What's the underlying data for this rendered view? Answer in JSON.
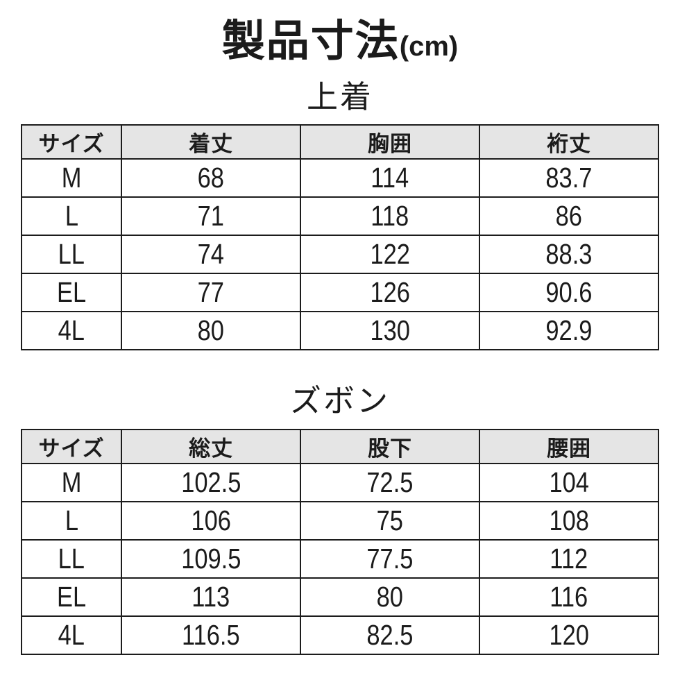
{
  "page": {
    "title_main": "製品寸法",
    "title_unit": "(cm)"
  },
  "colors": {
    "header_bg": "#e5e5e5",
    "border": "#1c1c1c",
    "text": "#1b1b1b",
    "background": "#ffffff"
  },
  "tables": [
    {
      "id": "jacket",
      "heading": "上着",
      "columns": [
        "サイズ",
        "着丈",
        "胸囲",
        "裄丈"
      ],
      "rows": [
        [
          "M",
          "68",
          "114",
          "83.7"
        ],
        [
          "L",
          "71",
          "118",
          "86"
        ],
        [
          "LL",
          "74",
          "122",
          "88.3"
        ],
        [
          "EL",
          "77",
          "126",
          "90.6"
        ],
        [
          "4L",
          "80",
          "130",
          "92.9"
        ]
      ]
    },
    {
      "id": "pants",
      "heading": "ズボン",
      "columns": [
        "サイズ",
        "総丈",
        "股下",
        "腰囲"
      ],
      "rows": [
        [
          "M",
          "102.5",
          "72.5",
          "104"
        ],
        [
          "L",
          "106",
          "75",
          "108"
        ],
        [
          "LL",
          "109.5",
          "77.5",
          "112"
        ],
        [
          "EL",
          "113",
          "80",
          "116"
        ],
        [
          "4L",
          "116.5",
          "82.5",
          "120"
        ]
      ]
    }
  ]
}
